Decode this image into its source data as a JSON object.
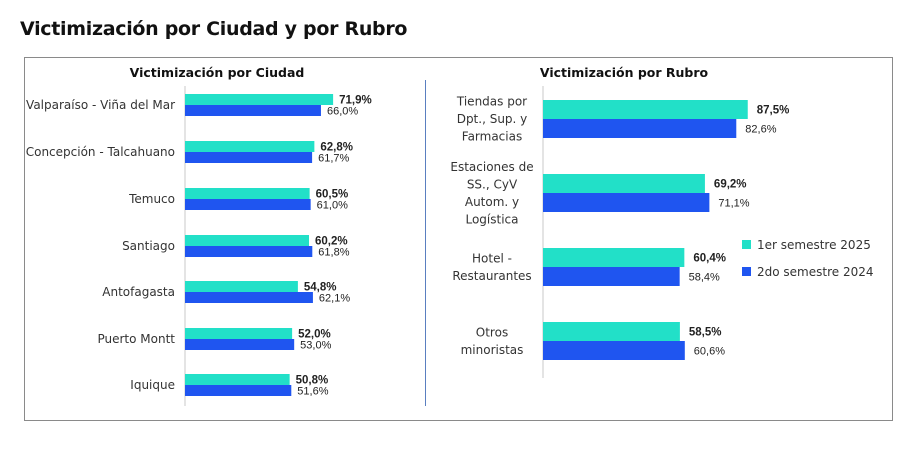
{
  "page_title": "Victimización por Ciudad y por Rubro",
  "colors": {
    "series1": "#22e0c8",
    "series2": "#1f55f0",
    "axis": "#c8c8c8",
    "divider": "#5a7fc0"
  },
  "legend": {
    "items": [
      "1er semestre 2025",
      "2do semestre 2024"
    ]
  },
  "chart_data": [
    {
      "type": "bar",
      "orientation": "horizontal",
      "title": "Victimización por Ciudad",
      "categories": [
        "Valparaíso - Viña del Mar",
        "Concepción - Talcahuano",
        "Temuco",
        "Santiago",
        "Antofagasta",
        "Puerto Montt",
        "Iquique"
      ],
      "series": [
        {
          "name": "1er semestre 2025",
          "values": [
            71.9,
            62.8,
            60.5,
            60.2,
            54.8,
            52.0,
            50.8
          ],
          "labels": [
            "71,9%",
            "62,8%",
            "60,5%",
            "60,2%",
            "54,8%",
            "52,0%",
            "50,8%"
          ]
        },
        {
          "name": "2do semestre 2024",
          "values": [
            66.0,
            61.7,
            61.0,
            61.8,
            62.1,
            53.0,
            51.6
          ],
          "labels": [
            "66,0%",
            "61,7%",
            "61,0%",
            "61,8%",
            "62,1%",
            "53,0%",
            "51,6%"
          ]
        }
      ]
    },
    {
      "type": "bar",
      "orientation": "horizontal",
      "title": "Victimización por Rubro",
      "categories": [
        [
          "Tiendas por",
          "Dpt., Sup. y",
          "Farmacias"
        ],
        [
          "Estaciones de",
          "SS., CyV",
          "Autom. y",
          "Logística"
        ],
        [
          "Hotel -",
          "Restaurantes"
        ],
        [
          "Otros",
          "minoristas"
        ]
      ],
      "series": [
        {
          "name": "1er semestre 2025",
          "values": [
            87.5,
            69.2,
            60.4,
            58.5
          ],
          "labels": [
            "87,5%",
            "69,2%",
            "60,4%",
            "58,5%"
          ]
        },
        {
          "name": "2do semestre 2024",
          "values": [
            82.6,
            71.1,
            58.4,
            60.6
          ],
          "labels": [
            "82,6%",
            "71,1%",
            "58,4%",
            "60,6%"
          ]
        }
      ]
    }
  ]
}
